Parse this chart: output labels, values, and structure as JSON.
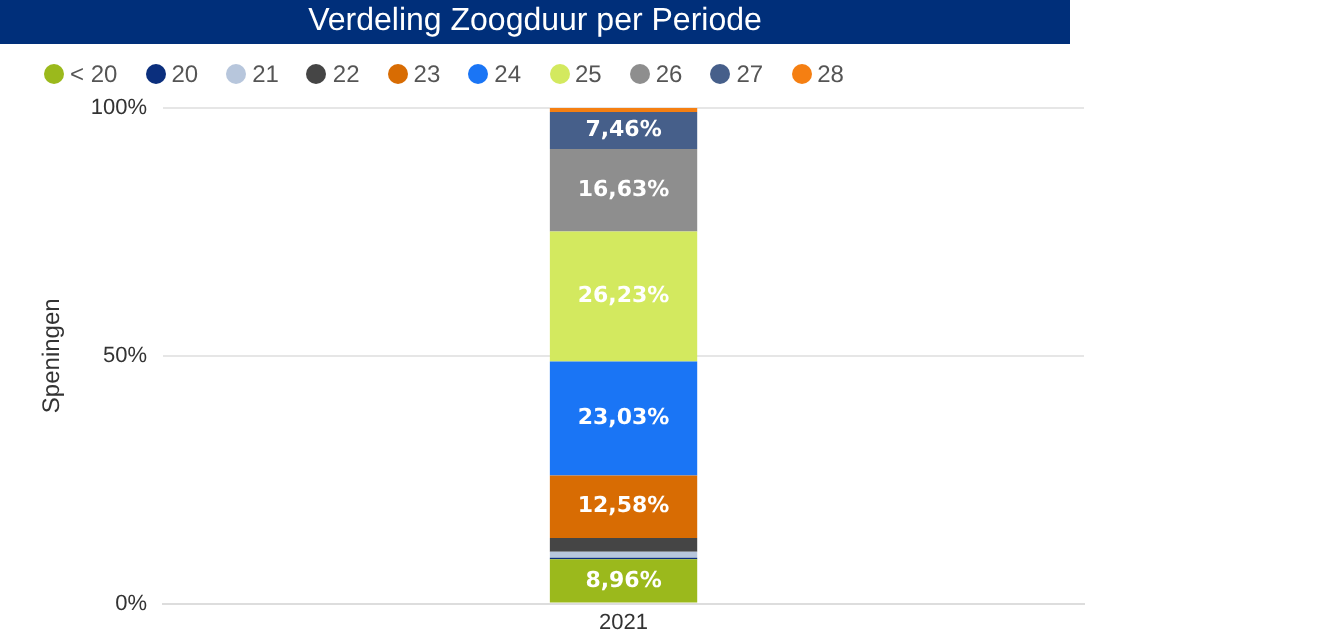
{
  "chart_data": {
    "type": "bar",
    "title": "Verdeling Zoogduur per Periode",
    "ylabel": "Speningen",
    "categories": [
      "2021"
    ],
    "stacked": true,
    "ylim": [
      0,
      100
    ],
    "yticks": [
      {
        "value": 0,
        "label": "0%"
      },
      {
        "value": 50,
        "label": "50%"
      },
      {
        "value": 100,
        "label": "100%"
      }
    ],
    "grid": "y",
    "legend": "top left",
    "marker": "circle",
    "series": [
      {
        "name": "< 20",
        "color": "#9bb91c",
        "values": [
          8.96
        ],
        "value_labels": [
          "8,96%"
        ]
      },
      {
        "name": "20",
        "color": "#0b2f7d",
        "values": [
          0.3
        ],
        "value_labels": [
          null
        ]
      },
      {
        "name": "21",
        "color": "#b7c6dc",
        "values": [
          1.2
        ],
        "value_labels": [
          null
        ]
      },
      {
        "name": "22",
        "color": "#454545",
        "values": [
          2.8
        ],
        "value_labels": [
          null
        ]
      },
      {
        "name": "23",
        "color": "#d86c03",
        "values": [
          12.58
        ],
        "value_labels": [
          "12,58%"
        ]
      },
      {
        "name": "24",
        "color": "#1a75f5",
        "values": [
          23.03
        ],
        "value_labels": [
          "23,03%"
        ]
      },
      {
        "name": "25",
        "color": "#d3e95f",
        "values": [
          26.23
        ],
        "value_labels": [
          "26,23%"
        ]
      },
      {
        "name": "26",
        "color": "#8e8e8e",
        "values": [
          16.63
        ],
        "value_labels": [
          "16,63%"
        ]
      },
      {
        "name": "27",
        "color": "#465f8a",
        "values": [
          7.46
        ],
        "value_labels": [
          "7,46%"
        ]
      },
      {
        "name": "28",
        "color": "#f57f12",
        "values": [
          0.8
        ],
        "value_labels": [
          null
        ]
      }
    ]
  }
}
